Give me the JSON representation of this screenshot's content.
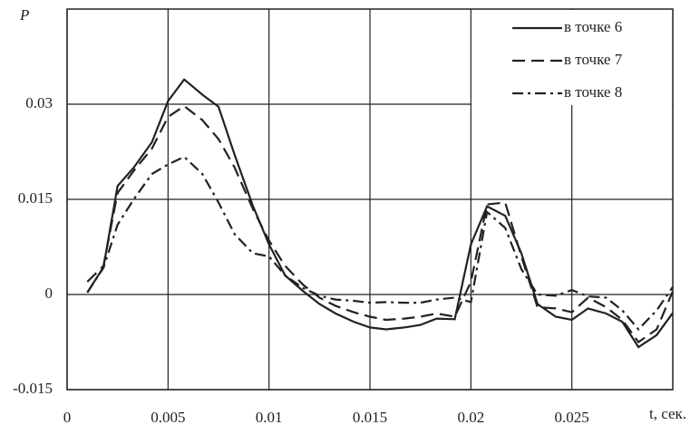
{
  "chart_data": {
    "type": "line",
    "y_label": "P",
    "x_label": "t, сек.",
    "x": [
      0.001,
      0.0018,
      0.0025,
      0.0033,
      0.0042,
      0.005,
      0.0058,
      0.0067,
      0.0075,
      0.0083,
      0.0092,
      0.01,
      0.0108,
      0.0117,
      0.0125,
      0.0133,
      0.0142,
      0.015,
      0.0158,
      0.0167,
      0.0175,
      0.0183,
      0.0192,
      0.02,
      0.0208,
      0.0217,
      0.0225,
      0.0233,
      0.0242,
      0.025,
      0.0258,
      0.0267,
      0.0275,
      0.0283,
      0.0292,
      0.03
    ],
    "series": [
      {
        "name": "в точке 6",
        "color": "#222222",
        "dash": "solid",
        "values": [
          0.0003,
          0.0043,
          0.0171,
          0.02,
          0.024,
          0.0305,
          0.0339,
          0.0315,
          0.0296,
          0.022,
          0.014,
          0.0079,
          0.003,
          0.0005,
          -0.0015,
          -0.003,
          -0.0043,
          -0.0052,
          -0.0055,
          -0.0052,
          -0.0048,
          -0.0038,
          -0.0039,
          0.0079,
          0.0139,
          0.0124,
          0.0065,
          -0.0015,
          -0.0035,
          -0.004,
          -0.0022,
          -0.003,
          -0.0043,
          -0.0083,
          -0.0064,
          -0.0029
        ]
      },
      {
        "name": "в точке 7",
        "color": "#222222",
        "dash": "dashed",
        "values": [
          0.002,
          0.0045,
          0.016,
          0.0195,
          0.023,
          0.028,
          0.0297,
          0.0275,
          0.0245,
          0.02,
          0.0135,
          0.0085,
          0.0045,
          0.0015,
          -0.0005,
          -0.0018,
          -0.0028,
          -0.0035,
          -0.004,
          -0.0038,
          -0.0035,
          -0.003,
          -0.0035,
          0.002,
          0.0142,
          0.0145,
          0.006,
          -0.002,
          -0.0022,
          -0.0028,
          -0.0005,
          -0.002,
          -0.004,
          -0.0075,
          -0.0055,
          0.0005
        ]
      },
      {
        "name": "в точке 8",
        "color": "#222222",
        "dash": "dashdot",
        "values": [
          0.0003,
          0.0042,
          0.011,
          0.015,
          0.019,
          0.0205,
          0.0217,
          0.019,
          0.0145,
          0.0095,
          0.0065,
          0.006,
          0.003,
          0.001,
          -0.0002,
          -0.0008,
          -0.001,
          -0.0013,
          -0.0012,
          -0.0013,
          -0.0013,
          -0.0008,
          -0.0005,
          -0.0012,
          0.013,
          0.0105,
          0.004,
          0,
          -0.0002,
          0.0007,
          -0.0003,
          -0.0005,
          -0.0025,
          -0.0055,
          -0.0025,
          0.0012
        ]
      }
    ],
    "xlim": [
      0,
      0.03
    ],
    "xticks": [
      0,
      0.005,
      0.01,
      0.015,
      0.02,
      0.025
    ],
    "ylim": [
      -0.015,
      0.045
    ],
    "yticks": [
      -0.015,
      0,
      0.015,
      0.03
    ],
    "grid": true,
    "legend": "upper right"
  }
}
